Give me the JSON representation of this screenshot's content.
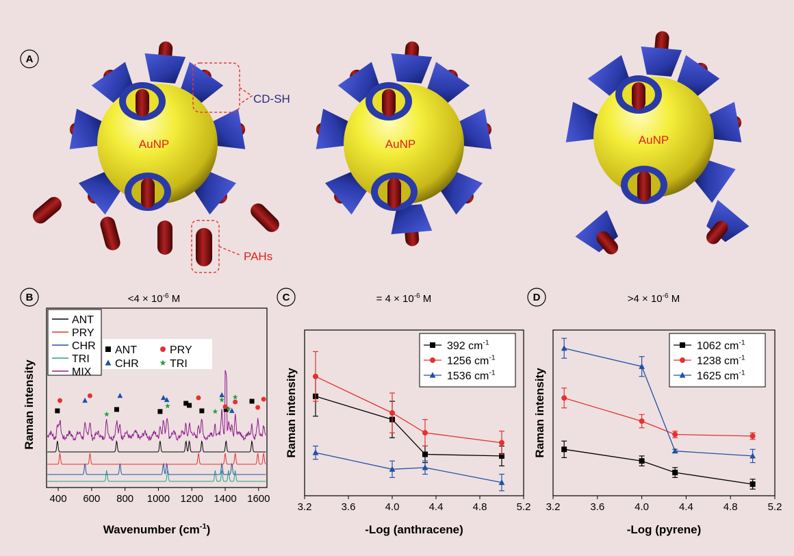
{
  "panel_a": {
    "label": "A",
    "particle_label": "AuNP",
    "cd_label": "CD-SH",
    "pah_label": "PAHs",
    "conditions": [
      {
        "prefix": "<4 × 10",
        "exp": "-6",
        "suffix": " M"
      },
      {
        "prefix": "= 4 × 10",
        "exp": "-6",
        "suffix": " M"
      },
      {
        "prefix": ">4 × 10",
        "exp": "-6",
        "suffix": " M"
      }
    ],
    "colors": {
      "particle": "#e8e02a",
      "cyclodextrin": "#2a3aa8",
      "pah": "#8b1010",
      "callout": "#e23a3a",
      "cd_text": "#2a2a80"
    }
  },
  "chart_data": [
    {
      "panel": "B",
      "type": "line",
      "xlabel": "Wavenumber (cm-1)",
      "ylabel": "Raman intensity",
      "xlim": [
        330,
        1650
      ],
      "xticks": [
        400,
        600,
        800,
        1000,
        1200,
        1400,
        1600
      ],
      "line_legend": [
        {
          "name": "ANT",
          "color": "#000000"
        },
        {
          "name": "PRY",
          "color": "#e53030"
        },
        {
          "name": "CHR",
          "color": "#2050a8"
        },
        {
          "name": "TRI",
          "color": "#20a088"
        },
        {
          "name": "MIX",
          "color": "#8c1c8c"
        }
      ],
      "marker_legend": [
        {
          "name": "ANT",
          "marker": "square",
          "color": "#000000"
        },
        {
          "name": "PRY",
          "marker": "circle",
          "color": "#e53030"
        },
        {
          "name": "CHR",
          "marker": "triangle",
          "color": "#2050a8"
        },
        {
          "name": "TRI",
          "marker": "star",
          "color": "#20a040"
        }
      ],
      "peaks": {
        "ANT": [
          395,
          750,
          1010,
          1165,
          1185,
          1260,
          1405,
          1560
        ],
        "PRY": [
          410,
          590,
          1240,
          1400,
          1460,
          1595,
          1630
        ],
        "CHR": [
          560,
          770,
          1030,
          1050,
          1380,
          1440
        ],
        "TRI": [
          690,
          1055,
          1340,
          1380,
          1420,
          1460
        ]
      }
    },
    {
      "panel": "C",
      "type": "line",
      "xlabel": "-Log (anthracene)",
      "ylabel": "Raman intensity",
      "xlim": [
        3.2,
        5.2
      ],
      "xticks": [
        3.2,
        3.6,
        4.0,
        4.4,
        4.8,
        5.2
      ],
      "ylim": [
        0,
        10
      ],
      "x": [
        3.3,
        4.0,
        4.3,
        5.0
      ],
      "series": [
        {
          "name": "392 cm-1",
          "color": "#000000",
          "marker": "square",
          "values": [
            6.0,
            4.6,
            2.5,
            2.4
          ],
          "errors": [
            1.2,
            1.1,
            0.5,
            0.6
          ]
        },
        {
          "name": "1256 cm-1",
          "color": "#e53030",
          "marker": "circle",
          "values": [
            7.2,
            5.0,
            3.8,
            3.2
          ],
          "errors": [
            1.5,
            1.2,
            0.8,
            0.7
          ]
        },
        {
          "name": "1536 cm-1",
          "color": "#2050a8",
          "marker": "triangle",
          "values": [
            2.6,
            1.6,
            1.7,
            0.8
          ],
          "errors": [
            0.4,
            0.5,
            0.4,
            0.5
          ]
        }
      ]
    },
    {
      "panel": "D",
      "type": "line",
      "xlabel": "-Log (pyrene)",
      "ylabel": "Raman intensity",
      "xlim": [
        3.2,
        5.2
      ],
      "xticks": [
        3.2,
        3.6,
        4.0,
        4.4,
        4.8,
        5.2
      ],
      "ylim": [
        0,
        10
      ],
      "x": [
        3.3,
        4.0,
        4.3,
        5.0
      ],
      "series": [
        {
          "name": "1062 cm-1",
          "color": "#000000",
          "marker": "square",
          "values": [
            2.8,
            2.1,
            1.4,
            0.7
          ],
          "errors": [
            0.5,
            0.3,
            0.3,
            0.3
          ]
        },
        {
          "name": "1238 cm-1",
          "color": "#e53030",
          "marker": "circle",
          "values": [
            5.9,
            4.5,
            3.7,
            3.6
          ],
          "errors": [
            0.6,
            0.4,
            0.2,
            0.2
          ]
        },
        {
          "name": "1625 cm-1",
          "color": "#2050a8",
          "marker": "triangle",
          "values": [
            8.9,
            7.8,
            2.7,
            2.4
          ],
          "errors": [
            0.6,
            0.6,
            0.1,
            0.4
          ]
        }
      ]
    }
  ]
}
